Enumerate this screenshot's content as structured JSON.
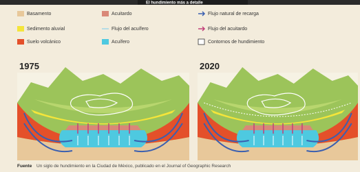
{
  "header": {
    "title": "El hundimiento más a detalle"
  },
  "legend": {
    "items": [
      {
        "label": "Basamento"
      },
      {
        "label": "Sedimento aluvial"
      },
      {
        "label": "Suelo volcánico"
      },
      {
        "label": "Acuitardo"
      },
      {
        "label": "Flujo del acuífero"
      },
      {
        "label": "Acuífero"
      },
      {
        "label": "Flujo natural de recarga"
      },
      {
        "label": "Flujo del acuitardo"
      },
      {
        "label": "Contornos de hundimiento"
      }
    ]
  },
  "panels": [
    {
      "year": "1975"
    },
    {
      "year": "2020"
    }
  ],
  "source": {
    "label": "Fuente",
    "text": "Un siglo de hundimiento en la Ciudad de México, publicado en el Journal of Geographic Research"
  }
}
